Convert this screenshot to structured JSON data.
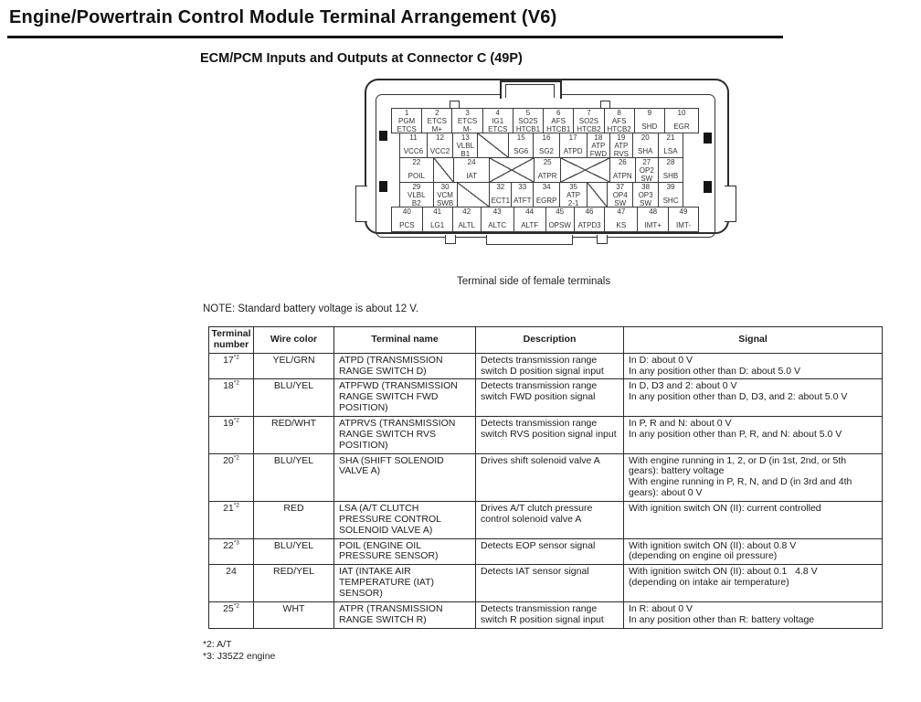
{
  "page": {
    "title": "Engine/Powertrain Control Module Terminal Arrangement (V6)",
    "subtitle": "ECM/PCM Inputs and Outputs at Connector C (49P)",
    "caption": "Terminal side of female terminals",
    "note": "NOTE: Standard battery voltage is about 12 V.",
    "footnotes": [
      "*2: A/T",
      "*3: J35Z2 engine"
    ]
  },
  "connector": {
    "rows": [
      {
        "inset": false,
        "cells": [
          {
            "n": "1",
            "l": "PGM\nETCS",
            "w": 1
          },
          {
            "n": "2",
            "l": "ETCS\nM+",
            "w": 1
          },
          {
            "n": "3",
            "l": "ETCS\nM-",
            "w": 1
          },
          {
            "n": "4",
            "l": "IG1\nETCS",
            "w": 1
          },
          {
            "n": "5",
            "l": "SO2S\nHTCB1",
            "w": 1
          },
          {
            "n": "6",
            "l": "AFS\nHTCB1",
            "w": 1
          },
          {
            "n": "7",
            "l": "SO2S\nHTCB2",
            "w": 1
          },
          {
            "n": "8",
            "l": "AFS\nHTCB2",
            "w": 1
          },
          {
            "n": "9",
            "l": "SHD",
            "w": 1
          },
          {
            "n": "10",
            "l": "EGR",
            "w": 1.12
          }
        ]
      },
      {
        "inset": true,
        "cells": [
          {
            "n": "11",
            "l": "VCC6",
            "w": 1.05
          },
          {
            "n": "12",
            "l": "VCC2",
            "w": 1
          },
          {
            "n": "13",
            "l": "VLBL\nB1",
            "w": 0.95
          },
          {
            "x": 1,
            "w": 1.2
          },
          {
            "n": "15",
            "l": "SG6",
            "w": 0.95
          },
          {
            "n": "16",
            "l": "SG2",
            "w": 1
          },
          {
            "n": "17",
            "l": "ATPD",
            "w": 1.05
          },
          {
            "n": "18",
            "l": "ATP\nFWD",
            "w": 0.9
          },
          {
            "n": "19",
            "l": "ATP\nRVS",
            "w": 0.85
          },
          {
            "n": "20",
            "l": "SHA",
            "w": 1
          },
          {
            "n": "21",
            "l": "LSA",
            "w": 0.95
          }
        ]
      },
      {
        "inset": true,
        "cells": [
          {
            "n": "22",
            "l": "POIL",
            "w": 1.2
          },
          {
            "x": 1,
            "w": 0.73
          },
          {
            "n": "24",
            "l": "IAT",
            "w": 1.28
          },
          {
            "x": 2,
            "w": 1.62
          },
          {
            "n": "25",
            "l": "ATPR",
            "w": 0.95
          },
          {
            "x": 2,
            "w": 1.78
          },
          {
            "n": "26",
            "l": "ATPN",
            "w": 0.9
          },
          {
            "n": "27",
            "l": "OP2\nSW",
            "w": 0.82
          },
          {
            "n": "28",
            "l": "SHB",
            "w": 0.88
          }
        ]
      },
      {
        "inset": true,
        "cells": [
          {
            "n": "29",
            "l": "VLBL\nB2",
            "w": 1.19
          },
          {
            "n": "30",
            "l": "VCM\nSWB",
            "w": 0.84
          },
          {
            "x": 1,
            "w": 1.16
          },
          {
            "n": "32",
            "l": "ECT1",
            "w": 0.77
          },
          {
            "n": "33",
            "l": "ATFT",
            "w": 0.77
          },
          {
            "n": "34",
            "l": "EGRP",
            "w": 0.93
          },
          {
            "n": "35",
            "l": "ATP\n2-1",
            "w": 0.97
          },
          {
            "x": 1,
            "w": 0.71
          },
          {
            "n": "37",
            "l": "OP4\nSW",
            "w": 0.9
          },
          {
            "n": "38",
            "l": "OP3\nSW",
            "w": 0.9
          },
          {
            "n": "39",
            "l": "SHC",
            "w": 0.87
          }
        ]
      },
      {
        "inset": false,
        "cells": [
          {
            "n": "40",
            "l": "PCS",
            "w": 1
          },
          {
            "n": "41",
            "l": "LG1",
            "w": 0.98
          },
          {
            "n": "42",
            "l": "ALTL",
            "w": 0.92
          },
          {
            "n": "43",
            "l": "ALTC",
            "w": 1.07
          },
          {
            "n": "44",
            "l": "ALTF",
            "w": 1.04
          },
          {
            "n": "45",
            "l": "OPSW",
            "w": 0.92
          },
          {
            "n": "46",
            "l": "ATPD3",
            "w": 1
          },
          {
            "n": "47",
            "l": "KS",
            "w": 1.07
          },
          {
            "n": "48",
            "l": "IMT+",
            "w": 1
          },
          {
            "n": "49",
            "l": "IMT-",
            "w": 0.98
          }
        ]
      }
    ]
  },
  "table": {
    "headers": [
      "Terminal\nnumber",
      "Wire color",
      "Terminal name",
      "Description",
      "Signal"
    ],
    "rows": [
      {
        "num": "17",
        "sup": "*2",
        "wire": "YEL/GRN",
        "name": "ATPD (TRANSMISSION\nRANGE SWITCH D)",
        "desc": "Detects transmission range switch D position signal input",
        "signal": "In D: about 0 V\nIn any position other than D: about 5.0 V"
      },
      {
        "num": "18",
        "sup": "*2",
        "wire": "BLU/YEL",
        "name": "ATPFWD (TRANSMISSION\nRANGE SWITCH FWD\nPOSITION)",
        "desc": "Detects transmission range switch FWD position signal",
        "signal": "In D, D3 and 2: about 0 V\nIn any position other than D, D3, and 2: about 5.0 V"
      },
      {
        "num": "19",
        "sup": "*2",
        "wire": "RED/WHT",
        "name": "ATPRVS (TRANSMISSION\nRANGE SWITCH RVS\nPOSITION)",
        "desc": "Detects transmission range switch RVS position signal input",
        "signal": "In P, R and N: about 0 V\nIn any position other than P, R, and N: about 5.0 V"
      },
      {
        "num": "20",
        "sup": "*2",
        "wire": "BLU/YEL",
        "name": "SHA (SHIFT SOLENOID\nVALVE A)",
        "desc": "Drives shift solenoid valve A",
        "signal": "With engine running in 1, 2, or D (in 1st, 2nd, or 5th gears): battery voltage\nWith engine running in P, R, N, and D (in 3rd and 4th gears): about 0 V"
      },
      {
        "num": "21",
        "sup": "*2",
        "wire": "RED",
        "name": "LSA (A/T CLUTCH\nPRESSURE CONTROL\nSOLENOID VALVE A)",
        "desc": "Drives A/T clutch pressure control solenoid valve A",
        "signal": "With ignition switch ON (II): current controlled"
      },
      {
        "num": "22",
        "sup": "*3",
        "wire": "BLU/YEL",
        "name": "POIL (ENGINE OIL\nPRESSURE SENSOR)",
        "desc": "Detects EOP sensor signal",
        "signal": "With ignition switch ON (II): about 0.8 V\n(depending on engine oil pressure)"
      },
      {
        "num": "24",
        "sup": "",
        "wire": "RED/YEL",
        "name": "IAT (INTAKE AIR\nTEMPERATURE (IAT)\nSENSOR)",
        "desc": "Detects IAT sensor signal",
        "signal": "With ignition switch ON (II): about 0.1   4.8 V\n(depending on intake air temperature)"
      },
      {
        "num": "25",
        "sup": "*2",
        "wire": "WHT",
        "name": "ATPR (TRANSMISSION\nRANGE SWITCH R)",
        "desc": "Detects transmission range switch R position signal input",
        "signal": "In R: about 0 V\nIn any position other than R: battery voltage"
      }
    ]
  }
}
